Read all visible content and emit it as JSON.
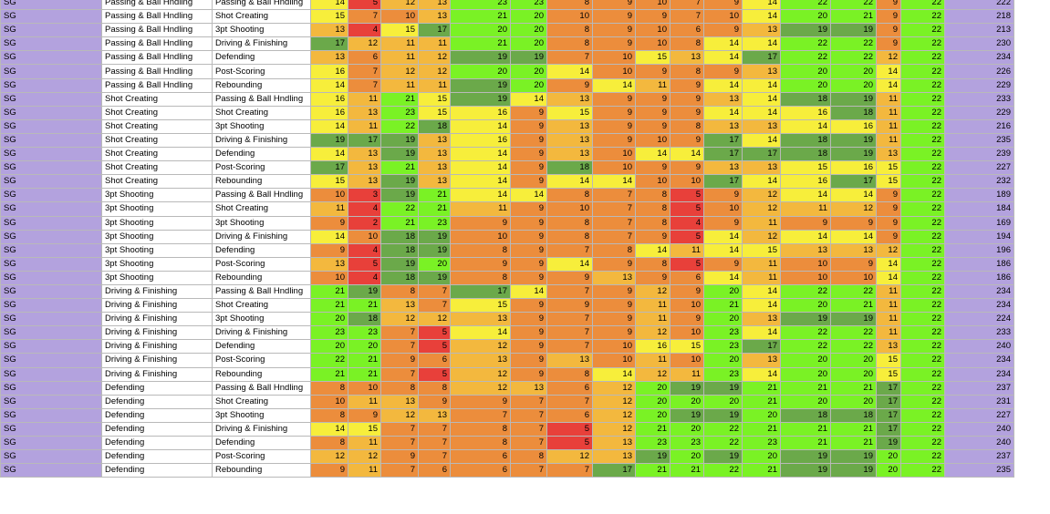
{
  "colors": {
    "position": "#b3a2de",
    "total": "#b3a2de",
    "scale": {
      "red": "#e8403a",
      "orange": "#ec8d3c",
      "amber": "#f3b83e",
      "yellow": "#f7ee3b",
      "lime": "#7af225",
      "green": "#6ba94a"
    }
  },
  "rows": [
    {
      "pos": "SG",
      "b1": "Passing & Ball Hndling",
      "b2": "Passing & Ball Hndling",
      "v": [
        14,
        5,
        12,
        13,
        23,
        23,
        8,
        9,
        10,
        7,
        9,
        14,
        22,
        22,
        9,
        22
      ],
      "total": 222
    },
    {
      "pos": "SG",
      "b1": "Passing & Ball Hndling",
      "b2": "Shot Creating",
      "v": [
        15,
        7,
        10,
        13,
        21,
        20,
        10,
        9,
        9,
        7,
        10,
        14,
        20,
        21,
        9,
        22
      ],
      "total": 218
    },
    {
      "pos": "SG",
      "b1": "Passing & Ball Hndling",
      "b2": "3pt Shooting",
      "v": [
        13,
        4,
        15,
        17,
        20,
        20,
        8,
        9,
        10,
        6,
        9,
        13,
        19,
        19,
        9,
        22
      ],
      "total": 213
    },
    {
      "pos": "SG",
      "b1": "Passing & Ball Hndling",
      "b2": "Driving & Finishing",
      "v": [
        17,
        12,
        11,
        11,
        21,
        20,
        8,
        9,
        10,
        8,
        14,
        14,
        22,
        22,
        9,
        22
      ],
      "total": 230
    },
    {
      "pos": "SG",
      "b1": "Passing & Ball Hndling",
      "b2": "Defending",
      "v": [
        13,
        6,
        11,
        12,
        19,
        19,
        7,
        10,
        15,
        13,
        14,
        17,
        22,
        22,
        12,
        22
      ],
      "total": 234
    },
    {
      "pos": "SG",
      "b1": "Passing & Ball Hndling",
      "b2": "Post-Scoring",
      "v": [
        16,
        7,
        12,
        12,
        20,
        20,
        14,
        10,
        9,
        8,
        9,
        13,
        20,
        20,
        14,
        22
      ],
      "total": 226
    },
    {
      "pos": "SG",
      "b1": "Passing & Ball Hndling",
      "b2": "Rebounding",
      "v": [
        14,
        7,
        11,
        11,
        19,
        20,
        9,
        14,
        11,
        9,
        14,
        14,
        20,
        20,
        14,
        22
      ],
      "total": 229
    },
    {
      "pos": "SG",
      "b1": "Shot Creating",
      "b2": "Passing & Ball Hndling",
      "v": [
        16,
        11,
        21,
        15,
        19,
        14,
        13,
        9,
        9,
        9,
        13,
        14,
        18,
        19,
        11,
        22
      ],
      "total": 233
    },
    {
      "pos": "SG",
      "b1": "Shot Creating",
      "b2": "Shot Creating",
      "v": [
        16,
        13,
        23,
        15,
        16,
        9,
        15,
        9,
        9,
        9,
        14,
        14,
        16,
        18,
        11,
        22
      ],
      "total": 229
    },
    {
      "pos": "SG",
      "b1": "Shot Creating",
      "b2": "3pt Shooting",
      "v": [
        14,
        11,
        22,
        18,
        14,
        9,
        13,
        9,
        9,
        8,
        13,
        13,
        14,
        16,
        11,
        22
      ],
      "total": 216
    },
    {
      "pos": "SG",
      "b1": "Shot Creating",
      "b2": "Driving & Finishing",
      "v": [
        19,
        17,
        19,
        13,
        16,
        9,
        13,
        9,
        10,
        9,
        17,
        14,
        18,
        19,
        11,
        22
      ],
      "total": 235
    },
    {
      "pos": "SG",
      "b1": "Shot Creating",
      "b2": "Defending",
      "v": [
        14,
        13,
        19,
        13,
        14,
        9,
        13,
        10,
        14,
        14,
        17,
        17,
        18,
        19,
        13,
        22
      ],
      "total": 239
    },
    {
      "pos": "SG",
      "b1": "Shot Creating",
      "b2": "Post-Scoring",
      "v": [
        17,
        13,
        21,
        13,
        14,
        9,
        18,
        10,
        9,
        9,
        13,
        13,
        15,
        16,
        15,
        22
      ],
      "total": 227
    },
    {
      "pos": "SG",
      "b1": "Shot Creating",
      "b2": "Rebounding",
      "v": [
        15,
        13,
        19,
        13,
        14,
        9,
        14,
        14,
        10,
        10,
        17,
        14,
        16,
        17,
        15,
        22
      ],
      "total": 232
    },
    {
      "pos": "SG",
      "b1": "3pt Shooting",
      "b2": "Passing & Ball Hndling",
      "v": [
        10,
        3,
        19,
        21,
        14,
        14,
        8,
        7,
        8,
        5,
        9,
        12,
        14,
        14,
        9,
        22
      ],
      "total": 189
    },
    {
      "pos": "SG",
      "b1": "3pt Shooting",
      "b2": "Shot Creating",
      "v": [
        11,
        4,
        22,
        21,
        11,
        9,
        10,
        7,
        8,
        5,
        10,
        12,
        11,
        12,
        9,
        22
      ],
      "total": 184
    },
    {
      "pos": "SG",
      "b1": "3pt Shooting",
      "b2": "3pt Shooting",
      "v": [
        9,
        2,
        21,
        23,
        9,
        9,
        8,
        7,
        8,
        4,
        9,
        11,
        9,
        9,
        9,
        22
      ],
      "total": 169
    },
    {
      "pos": "SG",
      "b1": "3pt Shooting",
      "b2": "Driving & Finishing",
      "v": [
        14,
        10,
        18,
        19,
        10,
        9,
        8,
        7,
        9,
        5,
        14,
        12,
        14,
        14,
        9,
        22
      ],
      "total": 194
    },
    {
      "pos": "SG",
      "b1": "3pt Shooting",
      "b2": "Defending",
      "v": [
        9,
        4,
        18,
        19,
        8,
        9,
        7,
        8,
        14,
        11,
        14,
        15,
        13,
        13,
        12,
        22
      ],
      "total": 196
    },
    {
      "pos": "SG",
      "b1": "3pt Shooting",
      "b2": "Post-Scoring",
      "v": [
        13,
        5,
        19,
        20,
        9,
        9,
        14,
        9,
        8,
        5,
        9,
        11,
        10,
        9,
        14,
        22
      ],
      "total": 186
    },
    {
      "pos": "SG",
      "b1": "3pt Shooting",
      "b2": "Rebounding",
      "v": [
        10,
        4,
        18,
        19,
        8,
        9,
        9,
        13,
        9,
        6,
        14,
        11,
        10,
        10,
        14,
        22
      ],
      "total": 186
    },
    {
      "pos": "SG",
      "b1": "Driving & Finishing",
      "b2": "Passing & Ball Hndling",
      "v": [
        21,
        19,
        8,
        7,
        17,
        14,
        7,
        9,
        12,
        9,
        20,
        14,
        22,
        22,
        11,
        22
      ],
      "total": 234
    },
    {
      "pos": "SG",
      "b1": "Driving & Finishing",
      "b2": "Shot Creating",
      "v": [
        21,
        21,
        13,
        7,
        15,
        9,
        9,
        9,
        11,
        10,
        21,
        14,
        20,
        21,
        11,
        22
      ],
      "total": 234
    },
    {
      "pos": "SG",
      "b1": "Driving & Finishing",
      "b2": "3pt Shooting",
      "v": [
        20,
        18,
        12,
        12,
        13,
        9,
        7,
        9,
        11,
        9,
        20,
        13,
        19,
        19,
        11,
        22
      ],
      "total": 224
    },
    {
      "pos": "SG",
      "b1": "Driving & Finishing",
      "b2": "Driving & Finishing",
      "v": [
        23,
        23,
        7,
        5,
        14,
        9,
        7,
        9,
        12,
        10,
        23,
        14,
        22,
        22,
        11,
        22
      ],
      "total": 233
    },
    {
      "pos": "SG",
      "b1": "Driving & Finishing",
      "b2": "Defending",
      "v": [
        20,
        20,
        7,
        5,
        12,
        9,
        7,
        10,
        16,
        15,
        23,
        17,
        22,
        22,
        13,
        22
      ],
      "total": 240
    },
    {
      "pos": "SG",
      "b1": "Driving & Finishing",
      "b2": "Post-Scoring",
      "v": [
        22,
        21,
        9,
        6,
        13,
        9,
        13,
        10,
        11,
        10,
        20,
        13,
        20,
        20,
        15,
        22
      ],
      "total": 234
    },
    {
      "pos": "SG",
      "b1": "Driving & Finishing",
      "b2": "Rebounding",
      "v": [
        21,
        21,
        7,
        5,
        12,
        9,
        8,
        14,
        12,
        11,
        23,
        14,
        20,
        20,
        15,
        22
      ],
      "total": 234
    },
    {
      "pos": "SG",
      "b1": "Defending",
      "b2": "Passing & Ball Hndling",
      "v": [
        8,
        10,
        8,
        8,
        12,
        13,
        6,
        12,
        20,
        19,
        19,
        21,
        21,
        21,
        17,
        22
      ],
      "total": 237
    },
    {
      "pos": "SG",
      "b1": "Defending",
      "b2": "Shot Creating",
      "v": [
        10,
        11,
        13,
        9,
        9,
        7,
        7,
        12,
        20,
        20,
        20,
        21,
        20,
        20,
        17,
        22
      ],
      "total": 231
    },
    {
      "pos": "SG",
      "b1": "Defending",
      "b2": "3pt Shooting",
      "v": [
        8,
        9,
        12,
        13,
        7,
        7,
        6,
        12,
        20,
        19,
        19,
        20,
        18,
        18,
        17,
        22
      ],
      "total": 227
    },
    {
      "pos": "SG",
      "b1": "Defending",
      "b2": "Driving & Finishing",
      "v": [
        14,
        15,
        7,
        7,
        8,
        7,
        5,
        12,
        21,
        20,
        22,
        21,
        21,
        21,
        17,
        22
      ],
      "total": 240
    },
    {
      "pos": "SG",
      "b1": "Defending",
      "b2": "Defending",
      "v": [
        8,
        11,
        7,
        7,
        8,
        7,
        5,
        13,
        23,
        23,
        22,
        23,
        21,
        21,
        19,
        22
      ],
      "total": 240
    },
    {
      "pos": "SG",
      "b1": "Defending",
      "b2": "Post-Scoring",
      "v": [
        12,
        12,
        9,
        7,
        6,
        8,
        12,
        13,
        19,
        20,
        19,
        20,
        19,
        19,
        20,
        22
      ],
      "total": 237
    },
    {
      "pos": "SG",
      "b1": "Defending",
      "b2": "Rebounding",
      "v": [
        9,
        11,
        7,
        6,
        6,
        7,
        7,
        17,
        21,
        21,
        22,
        21,
        19,
        19,
        20,
        22
      ],
      "total": 235
    }
  ]
}
